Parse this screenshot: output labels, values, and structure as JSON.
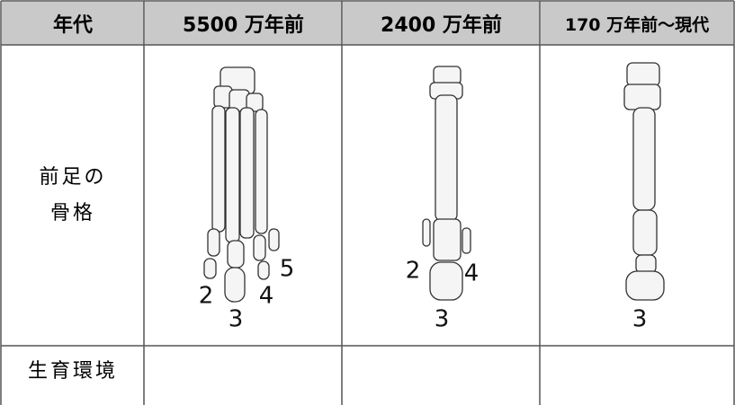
{
  "table": {
    "header": [
      "年代",
      "5500 万年前",
      "2400 万年前",
      "170 万年前～現代"
    ],
    "rows": [
      {
        "label": [
          "前足の",
          "骨格"
        ],
        "digits": [
          [
            "2",
            "3",
            "4",
            "5"
          ],
          [
            "2",
            "4",
            "3"
          ],
          [
            "3"
          ]
        ]
      },
      {
        "label": [
          "生育環境"
        ]
      }
    ]
  }
}
